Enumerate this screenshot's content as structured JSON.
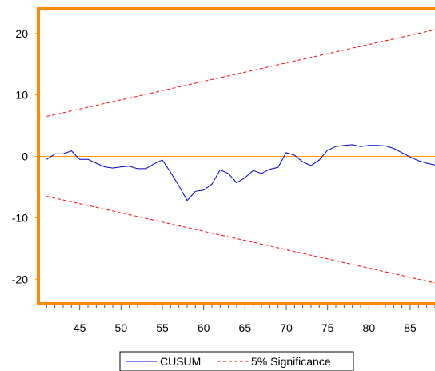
{
  "chart_data": {
    "type": "line",
    "x": [
      41,
      42,
      43,
      44,
      45,
      46,
      47,
      48,
      49,
      50,
      51,
      52,
      53,
      54,
      55,
      56,
      57,
      58,
      59,
      60,
      61,
      62,
      63,
      64,
      65,
      66,
      67,
      68,
      69,
      70,
      71,
      72,
      73,
      74,
      75,
      76,
      77,
      78,
      79,
      80,
      81,
      82,
      83,
      84,
      85,
      86,
      87,
      88
    ],
    "series": [
      {
        "name": "CUSUM",
        "color": "#0000cc",
        "style": "solid",
        "values": [
          -0.5,
          0.4,
          0.4,
          0.9,
          -0.5,
          -0.5,
          -1.1,
          -1.7,
          -1.9,
          -1.7,
          -1.6,
          -2.0,
          -2.0,
          -1.2,
          -0.6,
          -2.6,
          -4.8,
          -7.2,
          -5.7,
          -5.5,
          -4.5,
          -2.2,
          -2.8,
          -4.3,
          -3.5,
          -2.3,
          -2.8,
          -2.1,
          -1.8,
          0.6,
          0.2,
          -0.9,
          -1.5,
          -0.6,
          1.0,
          1.6,
          1.8,
          1.9,
          1.6,
          1.8,
          1.8,
          1.7,
          1.3,
          0.6,
          -0.1,
          -0.7,
          -1.1,
          -1.4
        ]
      },
      {
        "name": "5% Significance",
        "color": "#ff0000",
        "style": "dashed",
        "values": [
          6.5,
          6.8,
          7.1,
          7.4,
          7.7,
          8.0,
          8.3,
          8.6,
          8.9,
          9.2,
          9.5,
          9.8,
          10.1,
          10.4,
          10.7,
          11.0,
          11.3,
          11.6,
          11.9,
          12.2,
          12.5,
          12.8,
          13.1,
          13.4,
          13.7,
          14.0,
          14.3,
          14.6,
          14.9,
          15.2,
          15.5,
          15.8,
          16.1,
          16.4,
          16.7,
          17.0,
          17.3,
          17.6,
          17.9,
          18.2,
          18.5,
          18.8,
          19.1,
          19.4,
          19.7,
          20.0,
          20.3,
          20.6
        ]
      },
      {
        "name": "",
        "color": "#ff0000",
        "style": "dashed",
        "values": [
          -6.5,
          -6.8,
          -7.1,
          -7.4,
          -7.7,
          -8.0,
          -8.3,
          -8.6,
          -8.9,
          -9.2,
          -9.5,
          -9.8,
          -10.1,
          -10.4,
          -10.7,
          -11.0,
          -11.3,
          -11.6,
          -11.9,
          -12.2,
          -12.5,
          -12.8,
          -13.1,
          -13.4,
          -13.7,
          -14.0,
          -14.3,
          -14.6,
          -14.9,
          -15.2,
          -15.5,
          -15.8,
          -16.1,
          -16.4,
          -16.7,
          -17.0,
          -17.3,
          -17.6,
          -17.9,
          -18.2,
          -18.5,
          -18.8,
          -19.1,
          -19.4,
          -19.7,
          -20.0,
          -20.3,
          -20.6
        ]
      }
    ],
    "zero_line_color": "#ff9900",
    "frame_color": "#ff8800",
    "xlim": [
      40,
      88
    ],
    "ylim": [
      -24,
      24
    ],
    "xticks": [
      45,
      50,
      55,
      60,
      65,
      70,
      75,
      80,
      85
    ],
    "xtick_labels": [
      "45",
      "50",
      "55",
      "60",
      "65",
      "70",
      "75",
      "80",
      "85"
    ],
    "yticks": [
      -20,
      -10,
      0,
      10,
      20
    ],
    "ytick_labels": [
      "-20",
      "-10",
      "0",
      "10",
      "20"
    ],
    "title": "",
    "xlabel": "",
    "ylabel": "",
    "grid": false,
    "legend": {
      "placement": "bottom-center",
      "entries": [
        {
          "label": "CUSUM",
          "color": "#0000cc",
          "style": "solid"
        },
        {
          "label": "5% Significance",
          "color": "#ff0000",
          "style": "dashed"
        }
      ]
    }
  }
}
